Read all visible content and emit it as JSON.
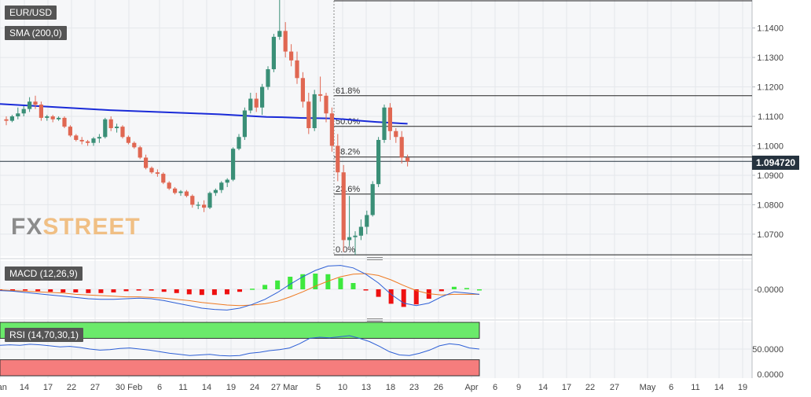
{
  "labels": {
    "symbol": "EUR/USD",
    "sma": "SMA (200,0)",
    "macd": "MACD (12,26,9)",
    "rsi": "RSI (14,70,30,1)",
    "last_price": "1.094720"
  },
  "logo": {
    "fx": "FX",
    "street": "STREET"
  },
  "chart_data": [
    {
      "type": "candlestick",
      "title": "EUR/USD",
      "ylim": [
        1.0625,
        1.1495
      ],
      "y_ticks": [
        "1.1400",
        "1.1300",
        "1.1200",
        "1.1100",
        "1.1000",
        "1.0900",
        "1.0800",
        "1.0700"
      ],
      "x_ticks": [
        "Jan",
        "14",
        "17",
        "22",
        "27",
        "30 Feb",
        "6",
        "11",
        "14",
        "19",
        "24",
        "27 Mar",
        "5",
        "10",
        "13",
        "18",
        "23",
        "26",
        "Apr",
        "6",
        "9",
        "14",
        "17",
        "22",
        "27",
        "May",
        "6",
        "11",
        "14",
        "19"
      ],
      "last_price": 1.09472,
      "sma": {
        "name": "SMA (200,0)",
        "color": "#1a2bd8",
        "values": [
          1.1142,
          1.1139,
          1.1136,
          1.1133,
          1.113,
          1.1127,
          1.1124,
          1.1121,
          1.1119,
          1.1117,
          1.1115,
          1.1113,
          1.1111,
          1.1109,
          1.1107,
          1.1104,
          1.1101,
          1.1098,
          1.1097,
          1.1095,
          1.1094,
          1.1093,
          1.109,
          1.1085,
          1.1081,
          1.1078,
          1.1075
        ]
      },
      "fibonacci": [
        {
          "label": "61.8%",
          "price": 1.117
        },
        {
          "label": "50.0%",
          "price": 1.1066
        },
        {
          "label": "38.2%",
          "price": 1.0962
        },
        {
          "label": "23.6%",
          "price": 1.0836
        },
        {
          "label": "0.0%",
          "price": 1.063
        }
      ],
      "ohlc": [
        [
          1.109,
          1.11,
          1.107,
          1.1085
        ],
        [
          1.1085,
          1.1105,
          1.108,
          1.11
        ],
        [
          1.11,
          1.113,
          1.109,
          1.111
        ],
        [
          1.111,
          1.1135,
          1.11,
          1.1125
        ],
        [
          1.1125,
          1.1165,
          1.1115,
          1.115
        ],
        [
          1.115,
          1.117,
          1.1125,
          1.114
        ],
        [
          1.114,
          1.115,
          1.1085,
          1.1095
        ],
        [
          1.1095,
          1.1105,
          1.1085,
          1.11
        ],
        [
          1.11,
          1.1105,
          1.108,
          1.109
        ],
        [
          1.109,
          1.11,
          1.1085,
          1.1095
        ],
        [
          1.1095,
          1.11,
          1.106,
          1.1065
        ],
        [
          1.1065,
          1.107,
          1.103,
          1.1035
        ],
        [
          1.1035,
          1.104,
          1.1015,
          1.102
        ],
        [
          1.102,
          1.103,
          1.1005,
          1.1015
        ],
        [
          1.1015,
          1.102,
          1.1,
          1.101
        ],
        [
          1.101,
          1.103,
          1.1,
          1.1025
        ],
        [
          1.1025,
          1.104,
          1.101,
          1.103
        ],
        [
          1.103,
          1.1095,
          1.1025,
          1.109
        ],
        [
          1.109,
          1.11,
          1.105,
          1.106
        ],
        [
          1.106,
          1.1075,
          1.1045,
          1.1065
        ],
        [
          1.1065,
          1.107,
          1.1025,
          1.103
        ],
        [
          1.103,
          1.1035,
          1.1005,
          1.101
        ],
        [
          1.101,
          1.1015,
          1.099,
          1.0995
        ],
        [
          1.0995,
          1.1,
          1.0955,
          1.096
        ],
        [
          1.096,
          1.097,
          1.092,
          1.0925
        ],
        [
          1.0925,
          1.093,
          1.0905,
          1.091
        ],
        [
          1.091,
          1.092,
          1.0895,
          1.0905
        ],
        [
          1.0905,
          1.091,
          1.087,
          1.0875
        ],
        [
          1.0875,
          1.088,
          1.085,
          1.0855
        ],
        [
          1.0855,
          1.086,
          1.0835,
          1.084
        ],
        [
          1.084,
          1.085,
          1.083,
          1.0845
        ],
        [
          1.0845,
          1.085,
          1.0825,
          1.083
        ],
        [
          1.083,
          1.0835,
          1.079,
          1.08
        ],
        [
          1.08,
          1.081,
          1.0785,
          1.08
        ],
        [
          1.08,
          1.0815,
          1.0775,
          1.079
        ],
        [
          1.079,
          1.0845,
          1.0785,
          1.084
        ],
        [
          1.084,
          1.0855,
          1.083,
          1.085
        ],
        [
          1.085,
          1.088,
          1.084,
          1.0875
        ],
        [
          1.0875,
          1.089,
          1.086,
          1.0885
        ],
        [
          1.0885,
          1.0995,
          1.088,
          1.099
        ],
        [
          1.099,
          1.104,
          1.0985,
          1.103
        ],
        [
          1.103,
          1.113,
          1.102,
          1.112
        ],
        [
          1.112,
          1.118,
          1.111,
          1.116
        ],
        [
          1.116,
          1.118,
          1.1115,
          1.113
        ],
        [
          1.113,
          1.121,
          1.1105,
          1.12
        ],
        [
          1.12,
          1.127,
          1.119,
          1.126
        ],
        [
          1.126,
          1.138,
          1.125,
          1.137
        ],
        [
          1.137,
          1.1495,
          1.136,
          1.139
        ],
        [
          1.139,
          1.142,
          1.13,
          1.132
        ],
        [
          1.132,
          1.1345,
          1.127,
          1.129
        ],
        [
          1.129,
          1.132,
          1.121,
          1.123
        ],
        [
          1.123,
          1.125,
          1.113,
          1.115
        ],
        [
          1.115,
          1.118,
          1.104,
          1.106
        ],
        [
          1.106,
          1.119,
          1.105,
          1.1175
        ],
        [
          1.1175,
          1.1235,
          1.115,
          1.117
        ],
        [
          1.117,
          1.118,
          1.108,
          1.111
        ],
        [
          1.111,
          1.113,
          1.098,
          1.1
        ],
        [
          1.1,
          1.104,
          1.088,
          1.091
        ],
        [
          1.091,
          1.0935,
          1.064,
          1.068
        ],
        [
          1.068,
          1.083,
          1.066,
          1.069
        ],
        [
          1.069,
          1.071,
          1.063,
          1.0695
        ],
        [
          1.0695,
          1.075,
          1.068,
          1.0725
        ],
        [
          1.0725,
          1.078,
          1.07,
          1.0765
        ],
        [
          1.0765,
          1.088,
          1.076,
          1.087
        ],
        [
          1.087,
          1.103,
          1.086,
          1.102
        ],
        [
          1.102,
          1.114,
          1.101,
          1.113
        ],
        [
          1.113,
          1.1145,
          1.102,
          1.105
        ],
        [
          1.105,
          1.106,
          1.101,
          1.103
        ],
        [
          1.103,
          1.105,
          1.094,
          1.096
        ],
        [
          1.096,
          1.097,
          1.093,
          1.0947
        ]
      ]
    },
    {
      "type": "bar",
      "title": "MACD (12,26,9)",
      "y_ticks": [
        "-0.0000"
      ],
      "series": [
        {
          "name": "MACD",
          "color": "#2d5fd6",
          "values": [
            -0.0002,
            -0.0003,
            -0.0005,
            -0.0007,
            -0.0009,
            -0.0011,
            -0.0013,
            -0.0015,
            -0.0016,
            -0.0016,
            -0.0015,
            -0.0014,
            -0.0015,
            -0.0018,
            -0.0022,
            -0.0026,
            -0.003,
            -0.0032,
            -0.0033,
            -0.003,
            -0.0024,
            -0.0016,
            -0.0005,
            0.0008,
            0.002,
            0.003,
            0.0037,
            0.0038,
            0.0034,
            0.0024,
            0.001,
            -0.0008,
            -0.0022,
            -0.0026,
            -0.0022,
            -0.0012,
            -0.0004,
            -0.0006,
            -0.0008
          ]
        },
        {
          "name": "Signal",
          "color": "#ee7a22",
          "values": [
            -0.0001,
            -0.0002,
            -0.0003,
            -0.0004,
            -0.0005,
            -0.0006,
            -0.0008,
            -0.0009,
            -0.001,
            -0.0011,
            -0.0012,
            -0.0012,
            -0.0013,
            -0.0014,
            -0.0016,
            -0.0018,
            -0.0021,
            -0.0023,
            -0.0025,
            -0.0026,
            -0.0025,
            -0.0023,
            -0.0019,
            -0.0012,
            -0.0004,
            0.0005,
            0.0013,
            0.002,
            0.0024,
            0.0025,
            0.0022,
            0.0015,
            0.0006,
            -0.0002,
            -0.0007,
            -0.0009,
            -0.0008,
            -0.0008,
            -0.0008
          ]
        },
        {
          "name": "Histogram",
          "values": [
            -0.0001,
            -0.0001,
            -0.0002,
            -0.0003,
            -0.0004,
            -0.0005,
            -0.0005,
            -0.0006,
            -0.0006,
            -0.0005,
            -0.0003,
            -0.0002,
            -0.0002,
            -0.0004,
            -0.0006,
            -0.0008,
            -0.0009,
            -0.0009,
            -0.0008,
            -0.0004,
            0.0001,
            0.0007,
            0.0014,
            0.002,
            0.0024,
            0.0025,
            0.0024,
            0.0018,
            0.001,
            -0.0001,
            -0.0012,
            -0.0023,
            -0.0028,
            -0.0024,
            -0.0015,
            -0.0003,
            0.0004,
            0.0002,
            0.0
          ]
        }
      ]
    },
    {
      "type": "line",
      "title": "RSI (14,70,30,1)",
      "ylim": [
        0,
        100
      ],
      "y_ticks": [
        "50.0000",
        "0.0000"
      ],
      "overbought": 70,
      "oversold": 30,
      "series": [
        {
          "name": "RSI",
          "color": "#2d5fd6",
          "values": [
            57,
            58,
            57,
            59,
            58,
            56,
            54,
            55,
            53,
            50,
            48,
            49,
            51,
            52,
            50,
            48,
            45,
            42,
            40,
            38,
            39,
            40,
            38,
            37,
            38,
            42,
            44,
            47,
            49,
            52,
            60,
            70,
            72,
            71,
            73,
            75,
            70,
            64,
            55,
            45,
            39,
            38,
            42,
            48,
            56,
            60,
            58,
            52,
            50
          ]
        }
      ]
    }
  ]
}
